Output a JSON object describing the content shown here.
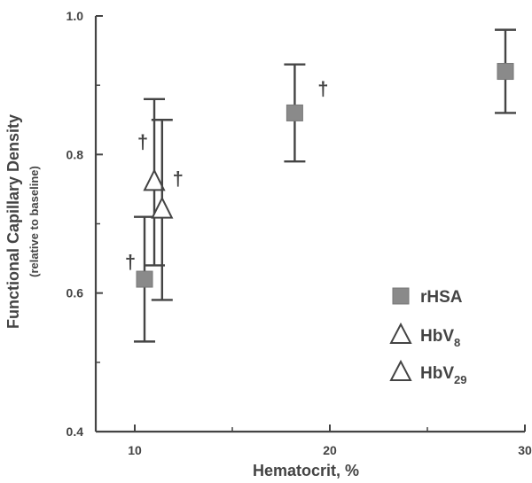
{
  "chart_data": {
    "type": "scatter",
    "title": "",
    "xlabel": "Hematocrit, %",
    "ylabel": "Functional Capillary Density",
    "ylabel_sub": "(relative to baseline)",
    "xlim": [
      8,
      30
    ],
    "ylim": [
      0.4,
      1.0
    ],
    "x_ticks": [
      10,
      20,
      30
    ],
    "y_ticks": [
      0.4,
      0.6,
      0.8,
      1.0
    ],
    "x_tick_labels": [
      "10",
      "20",
      "30"
    ],
    "y_tick_labels": [
      "0.4",
      "0.6",
      "0.8",
      "1.0"
    ],
    "grid": false,
    "legend_position": "lower-right",
    "series": [
      {
        "name": "rHSA",
        "legend_main": "rHSA",
        "legend_sub": "",
        "marker": "square",
        "color": "#8a8a8a",
        "points": [
          {
            "x": 10.5,
            "y": 0.62,
            "err_low": 0.53,
            "err_high": 0.71,
            "dagger": true
          },
          {
            "x": 18.2,
            "y": 0.86,
            "err_low": 0.79,
            "err_high": 0.93,
            "dagger": true
          },
          {
            "x": 29.0,
            "y": 0.92,
            "err_low": 0.86,
            "err_high": 0.98,
            "dagger": false
          }
        ]
      },
      {
        "name": "HbV8",
        "legend_main": "HbV",
        "legend_sub": "8",
        "marker": "triangle",
        "color": "#ffffff",
        "points": [
          {
            "x": 11.0,
            "y": 0.76,
            "err_low": 0.64,
            "err_high": 0.88,
            "dagger": true
          }
        ]
      },
      {
        "name": "HbV29",
        "legend_main": "HbV",
        "legend_sub": "29",
        "marker": "triangle",
        "color": "#ffffff",
        "points": [
          {
            "x": 11.4,
            "y": 0.72,
            "err_low": 0.59,
            "err_high": 0.85,
            "dagger": true
          }
        ]
      }
    ],
    "significance_marker": "†"
  }
}
